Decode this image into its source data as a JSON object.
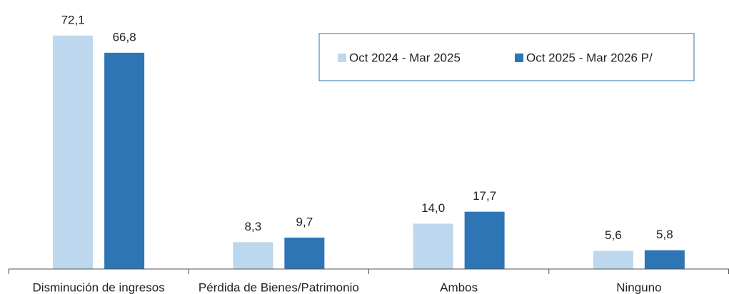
{
  "chart_data": {
    "type": "bar",
    "categories": [
      "Disminución de ingresos",
      "Pérdida de Bienes/Patrimonio",
      "Ambos",
      "Ninguno"
    ],
    "series": [
      {
        "name": "Oct 2024 - Mar 2025",
        "color": "#bdd7ee",
        "values": [
          72.1,
          8.3,
          14.0,
          5.6
        ],
        "value_labels": [
          "72,1",
          "8,3",
          "14,0",
          "5,6"
        ]
      },
      {
        "name": "Oct 2025 - Mar 2026 P/",
        "color": "#2e75b6",
        "values": [
          66.8,
          9.7,
          17.7,
          5.8
        ],
        "value_labels": [
          "66,8",
          "9,7",
          "17,7",
          "5,8"
        ]
      }
    ],
    "ylim": [
      0,
      80
    ],
    "legend": "top-right"
  }
}
